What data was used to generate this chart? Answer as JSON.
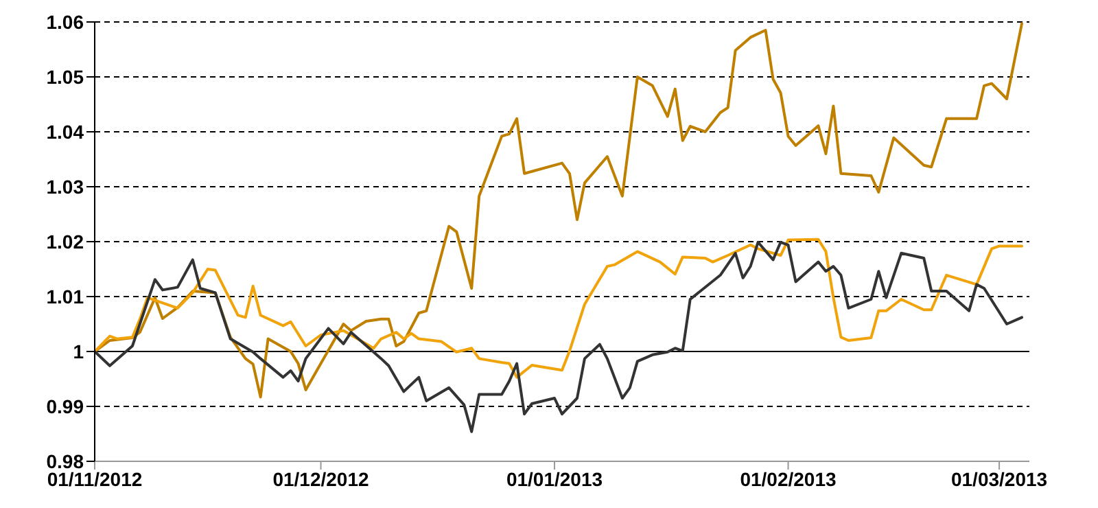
{
  "chart_data": {
    "type": "line",
    "xlim": [
      "2012-11-01",
      "2013-03-05"
    ],
    "ylim": [
      0.98,
      1.06
    ],
    "xticks": [
      {
        "value": "2012-11-01",
        "label": "01/11/2012"
      },
      {
        "value": "2012-12-01",
        "label": "01/12/2012"
      },
      {
        "value": "2013-01-01",
        "label": "01/01/2013"
      },
      {
        "value": "2013-02-01",
        "label": "01/02/2013"
      },
      {
        "value": "2013-03-01",
        "label": "01/03/2013"
      }
    ],
    "yticks": [
      0.98,
      0.99,
      1,
      1.01,
      1.02,
      1.03,
      1.04,
      1.05,
      1.06
    ],
    "grid": "y",
    "line_style": "solid",
    "ref_lines": [
      {
        "axis": "y",
        "value": 1,
        "color": "#000000"
      }
    ],
    "series": [
      {
        "color": "#bf8000",
        "x": [
          "2012-11-01",
          "2012-11-03",
          "2012-11-06",
          "2012-11-07",
          "2012-11-09",
          "2012-11-10",
          "2012-11-12",
          "2012-11-14",
          "2012-11-17",
          "2012-11-19",
          "2012-11-21",
          "2012-11-22",
          "2012-11-23",
          "2012-11-24",
          "2012-11-27",
          "2012-11-28",
          "2012-11-29",
          "2012-12-01",
          "2012-12-04",
          "2012-12-05",
          "2012-12-07",
          "2012-12-09",
          "2012-12-10",
          "2012-12-11",
          "2012-12-12",
          "2012-12-14",
          "2012-12-15",
          "2012-12-18",
          "2012-12-19",
          "2012-12-21",
          "2012-12-22",
          "2012-12-25",
          "2012-12-26",
          "2012-12-27",
          "2012-12-28",
          "2013-01-02",
          "2013-01-03",
          "2013-01-04",
          "2013-01-05",
          "2013-01-08",
          "2013-01-10",
          "2013-01-12",
          "2013-01-14",
          "2013-01-16",
          "2013-01-17",
          "2013-01-18",
          "2013-01-19",
          "2013-01-21",
          "2013-01-23",
          "2013-01-24",
          "2013-01-25",
          "2013-01-27",
          "2013-01-29",
          "2013-01-30",
          "2013-01-31",
          "2013-02-01",
          "2013-02-02",
          "2013-02-05",
          "2013-02-06",
          "2013-02-07",
          "2013-02-08",
          "2013-02-12",
          "2013-02-13",
          "2013-02-15",
          "2013-02-19",
          "2013-02-20",
          "2013-02-22",
          "2013-02-26",
          "2013-02-27",
          "2013-02-28",
          "2013-03-02",
          "2013-03-04"
        ],
        "values": [
          1.0,
          1.002,
          1.0025,
          1.0035,
          1.0098,
          1.006,
          1.008,
          1.011,
          1.0107,
          1.0026,
          0.9987,
          0.9977,
          0.9917,
          1.0023,
          1.0,
          0.9978,
          0.993,
          0.9978,
          1.005,
          1.0038,
          1.0055,
          1.0059,
          1.0059,
          1.001,
          1.0018,
          1.007,
          1.0074,
          1.0228,
          1.0218,
          1.0115,
          1.0283,
          1.0392,
          1.0396,
          1.0424,
          1.0324,
          1.0343,
          1.0324,
          1.024,
          1.0307,
          1.0355,
          1.0283,
          1.05,
          1.0484,
          1.0428,
          1.0478,
          1.0384,
          1.041,
          1.04,
          1.0435,
          1.0444,
          1.0548,
          1.0572,
          1.0585,
          1.0496,
          1.0471,
          1.0392,
          1.0375,
          1.0411,
          1.036,
          1.0447,
          1.0324,
          1.032,
          1.029,
          1.0389,
          1.0339,
          1.0336,
          1.0424,
          1.0424,
          1.0484,
          1.0488,
          1.046,
          1.0597
        ]
      },
      {
        "color": "#f0a30a",
        "x": [
          "2012-11-01",
          "2012-11-03",
          "2012-11-04",
          "2012-11-06",
          "2012-11-07",
          "2012-11-08",
          "2012-11-12",
          "2012-11-14",
          "2012-11-16",
          "2012-11-17",
          "2012-11-20",
          "2012-11-21",
          "2012-11-22",
          "2012-11-23",
          "2012-11-26",
          "2012-11-27",
          "2012-11-29",
          "2012-12-01",
          "2012-12-04",
          "2012-12-08",
          "2012-12-09",
          "2012-12-11",
          "2012-12-12",
          "2012-12-13",
          "2012-12-14",
          "2012-12-17",
          "2012-12-19",
          "2012-12-21",
          "2012-12-22",
          "2012-12-25",
          "2012-12-26",
          "2012-12-27",
          "2012-12-29",
          "2013-01-02",
          "2013-01-03",
          "2013-01-05",
          "2013-01-08",
          "2013-01-09",
          "2013-01-12",
          "2013-01-15",
          "2013-01-17",
          "2013-01-18",
          "2013-01-21",
          "2013-01-22",
          "2013-01-24",
          "2013-01-27",
          "2013-01-28",
          "2013-01-31",
          "2013-02-01",
          "2013-02-05",
          "2013-02-06",
          "2013-02-07",
          "2013-02-08",
          "2013-02-09",
          "2013-02-12",
          "2013-02-13",
          "2013-02-14",
          "2013-02-16",
          "2013-02-19",
          "2013-02-20",
          "2013-02-22",
          "2013-02-26",
          "2013-02-28",
          "2013-03-01",
          "2013-03-04"
        ],
        "values": [
          1.0,
          1.0028,
          1.0023,
          1.0026,
          1.0059,
          1.0098,
          1.0079,
          1.0107,
          1.015,
          1.0148,
          1.0066,
          1.0062,
          1.0119,
          1.0066,
          1.0047,
          1.0054,
          1.001,
          1.003,
          1.0038,
          1.0006,
          1.0023,
          1.0035,
          1.0023,
          1.0033,
          1.0023,
          1.0018,
          0.9999,
          1.0006,
          0.9987,
          0.998,
          0.9978,
          0.9953,
          0.9975,
          0.9966,
          1.0001,
          1.0086,
          1.0155,
          1.0158,
          1.0182,
          1.0163,
          1.0141,
          1.0172,
          1.017,
          1.0163,
          1.0175,
          1.0194,
          1.0187,
          1.0175,
          1.0203,
          1.0204,
          1.0182,
          1.0098,
          1.0026,
          1.002,
          1.0025,
          1.0074,
          1.0074,
          1.0095,
          1.0076,
          1.0076,
          1.0139,
          1.0122,
          1.0187,
          1.0192,
          1.0192
        ]
      },
      {
        "color": "#333333",
        "x": [
          "2012-11-01",
          "2012-11-03",
          "2012-11-06",
          "2012-11-09",
          "2012-11-10",
          "2012-11-12",
          "2012-11-14",
          "2012-11-15",
          "2012-11-17",
          "2012-11-19",
          "2012-11-22",
          "2012-11-23",
          "2012-11-26",
          "2012-11-27",
          "2012-11-28",
          "2012-11-29",
          "2012-12-02",
          "2012-12-04",
          "2012-12-05",
          "2012-12-07",
          "2012-12-09",
          "2012-12-10",
          "2012-12-12",
          "2012-12-14",
          "2012-12-15",
          "2012-12-18",
          "2012-12-20",
          "2012-12-21",
          "2012-12-22",
          "2012-12-25",
          "2012-12-26",
          "2012-12-27",
          "2012-12-28",
          "2012-12-29",
          "2013-01-01",
          "2013-01-02",
          "2013-01-04",
          "2013-01-05",
          "2013-01-07",
          "2013-01-08",
          "2013-01-10",
          "2013-01-11",
          "2013-01-12",
          "2013-01-14",
          "2013-01-16",
          "2013-01-17",
          "2013-01-18",
          "2013-01-19",
          "2013-01-23",
          "2013-01-25",
          "2013-01-26",
          "2013-01-27",
          "2013-01-28",
          "2013-01-30",
          "2013-01-31",
          "2013-02-01",
          "2013-02-02",
          "2013-02-05",
          "2013-02-06",
          "2013-02-07",
          "2013-02-08",
          "2013-02-09",
          "2013-02-12",
          "2013-02-13",
          "2013-02-14",
          "2013-02-16",
          "2013-02-19",
          "2013-02-20",
          "2013-02-22",
          "2013-02-25",
          "2013-02-26",
          "2013-02-27",
          "2013-03-02",
          "2013-03-04"
        ],
        "values": [
          1.0,
          0.9974,
          1.001,
          1.0131,
          1.0112,
          1.0117,
          1.0167,
          1.0115,
          1.0107,
          1.0023,
          0.9999,
          0.9987,
          0.9953,
          0.9965,
          0.9946,
          0.9987,
          1.0042,
          1.0014,
          1.0035,
          1.0011,
          0.9987,
          0.9974,
          0.9927,
          0.9953,
          0.991,
          0.9934,
          0.9903,
          0.9854,
          0.9922,
          0.9922,
          0.9946,
          0.9978,
          0.9886,
          0.9905,
          0.9915,
          0.9886,
          0.9915,
          0.9987,
          1.0013,
          0.9987,
          0.9915,
          0.9934,
          0.9982,
          0.9994,
          0.9999,
          1.0006,
          1.0001,
          1.0095,
          1.0139,
          1.0179,
          1.0134,
          1.0155,
          1.0199,
          1.0167,
          1.0199,
          1.0194,
          1.0127,
          1.0163,
          1.0146,
          1.0155,
          1.0139,
          1.0079,
          1.0095,
          1.0146,
          1.0098,
          1.0179,
          1.017,
          1.011,
          1.011,
          1.0074,
          1.0122,
          1.0115,
          1.005,
          1.0062
        ]
      }
    ]
  }
}
